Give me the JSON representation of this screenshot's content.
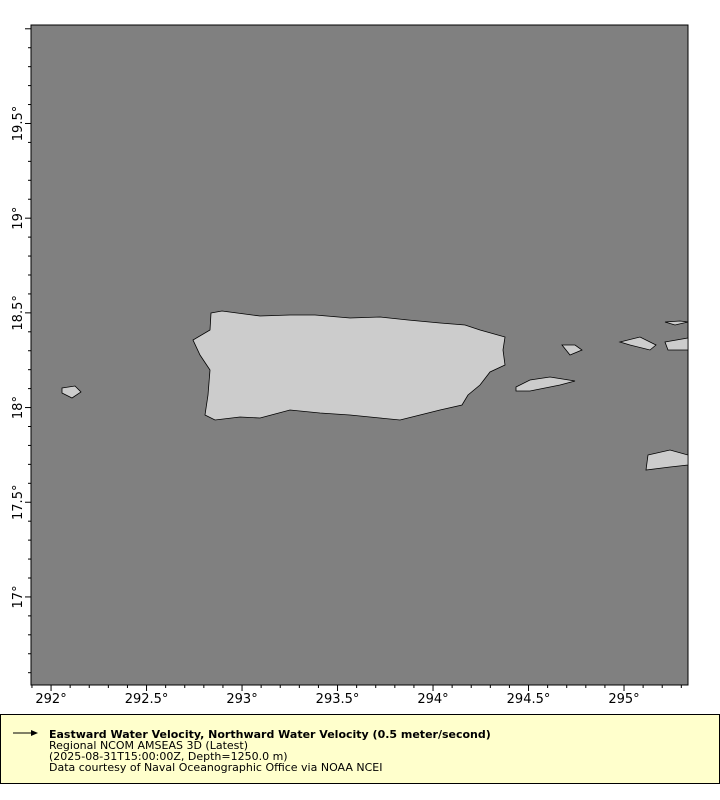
{
  "map": {
    "lon_range": [
      291.895,
      295.335
    ],
    "lat_range": [
      16.535,
      20.02
    ],
    "lon_ticks": [
      292,
      292.5,
      293,
      293.5,
      294,
      294.5,
      295
    ],
    "lon_tick_labels": [
      "292°",
      "292.5°",
      "293°",
      "293.5°",
      "294°",
      "294.5°",
      "295°"
    ],
    "lat_ticks": [
      17,
      17.5,
      18,
      18.5,
      19,
      19.5
    ],
    "lat_tick_labels": [
      "17°",
      "17.5°",
      "18°",
      "18.5°",
      "19°",
      "19.5°"
    ],
    "colors": {
      "ocean": "#808080",
      "land": "#cccccc",
      "coastline": "#000000",
      "legend_bg": "#ffffcc"
    }
  },
  "legend": {
    "arrow_icon": "arrow-right",
    "title": "Eastward Water Velocity, Northward Water Velocity (0.5 meter/second)",
    "line1": "Regional NCOM AMSEAS 3D (Latest)",
    "line2": "(2025-08-31T15:00:00Z, Depth=1250.0 m)",
    "line3": "Data courtesy of Naval Oceanographic Office via NOAA NCEI"
  }
}
